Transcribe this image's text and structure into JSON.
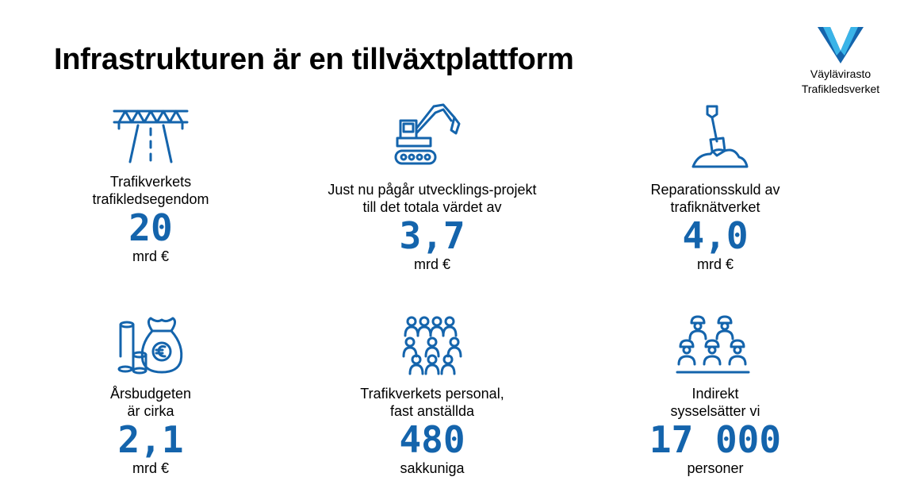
{
  "title": "Infrastrukturen är en tillväxtplattform",
  "logo": {
    "line1": "Väylävirasto",
    "line2": "Trafikledsverket"
  },
  "colors": {
    "accent": "#1464ac",
    "logo_light": "#3ab4e8",
    "logo_dark": "#1464ac"
  },
  "cards": [
    {
      "icon": "bridge-road-icon",
      "label1": "Trafikverkets",
      "label2": "trafikledsegendom",
      "value": "20",
      "unit": "mrd €"
    },
    {
      "icon": "excavator-icon",
      "label1": "Just nu pågår utvecklings-projekt",
      "label2": "till det totala värdet av",
      "value": "3,7",
      "unit": "mrd €"
    },
    {
      "icon": "shovel-icon",
      "label1": "Reparationsskuld av",
      "label2": "trafiknätverket",
      "value": "4,0",
      "unit": "mrd €"
    },
    {
      "icon": "money-bag-icon",
      "label1": "Årsbudgeten",
      "label2": "är cirka",
      "value": "2,1",
      "unit": "mrd €"
    },
    {
      "icon": "people-group-icon",
      "label1": "Trafikverkets personal,",
      "label2": "fast anställda",
      "value": "480",
      "unit": "sakkuniga"
    },
    {
      "icon": "workers-icon",
      "label1": "Indirekt",
      "label2": "sysselsätter vi",
      "value": "17 000",
      "unit": "personer"
    }
  ]
}
